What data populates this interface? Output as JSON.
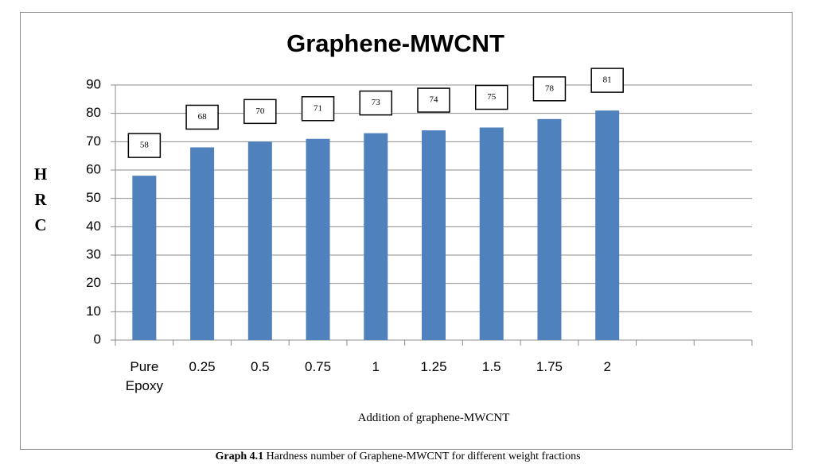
{
  "chart_data": {
    "type": "bar",
    "title": "Graphene-MWCNT",
    "categories": [
      "Pure Epoxy",
      "0.25",
      "0.5",
      "0.75",
      "1",
      "1.25",
      "1.5",
      "1.75",
      "2",
      null,
      null
    ],
    "values": [
      58,
      68,
      70,
      71,
      73,
      74,
      75,
      78,
      81,
      null,
      null
    ],
    "color": "#4f81bd",
    "ylim": [
      0,
      90
    ],
    "yticks": [
      0,
      10,
      20,
      30,
      40,
      50,
      60,
      70,
      80,
      90
    ],
    "grid": true,
    "y_label": "HRC",
    "x_label": "Addition of graphene-MWCNT"
  },
  "caption": {
    "label": "Graph 4.1",
    "text": "Hardness number of Graphene-MWCNT for different weight fractions"
  }
}
